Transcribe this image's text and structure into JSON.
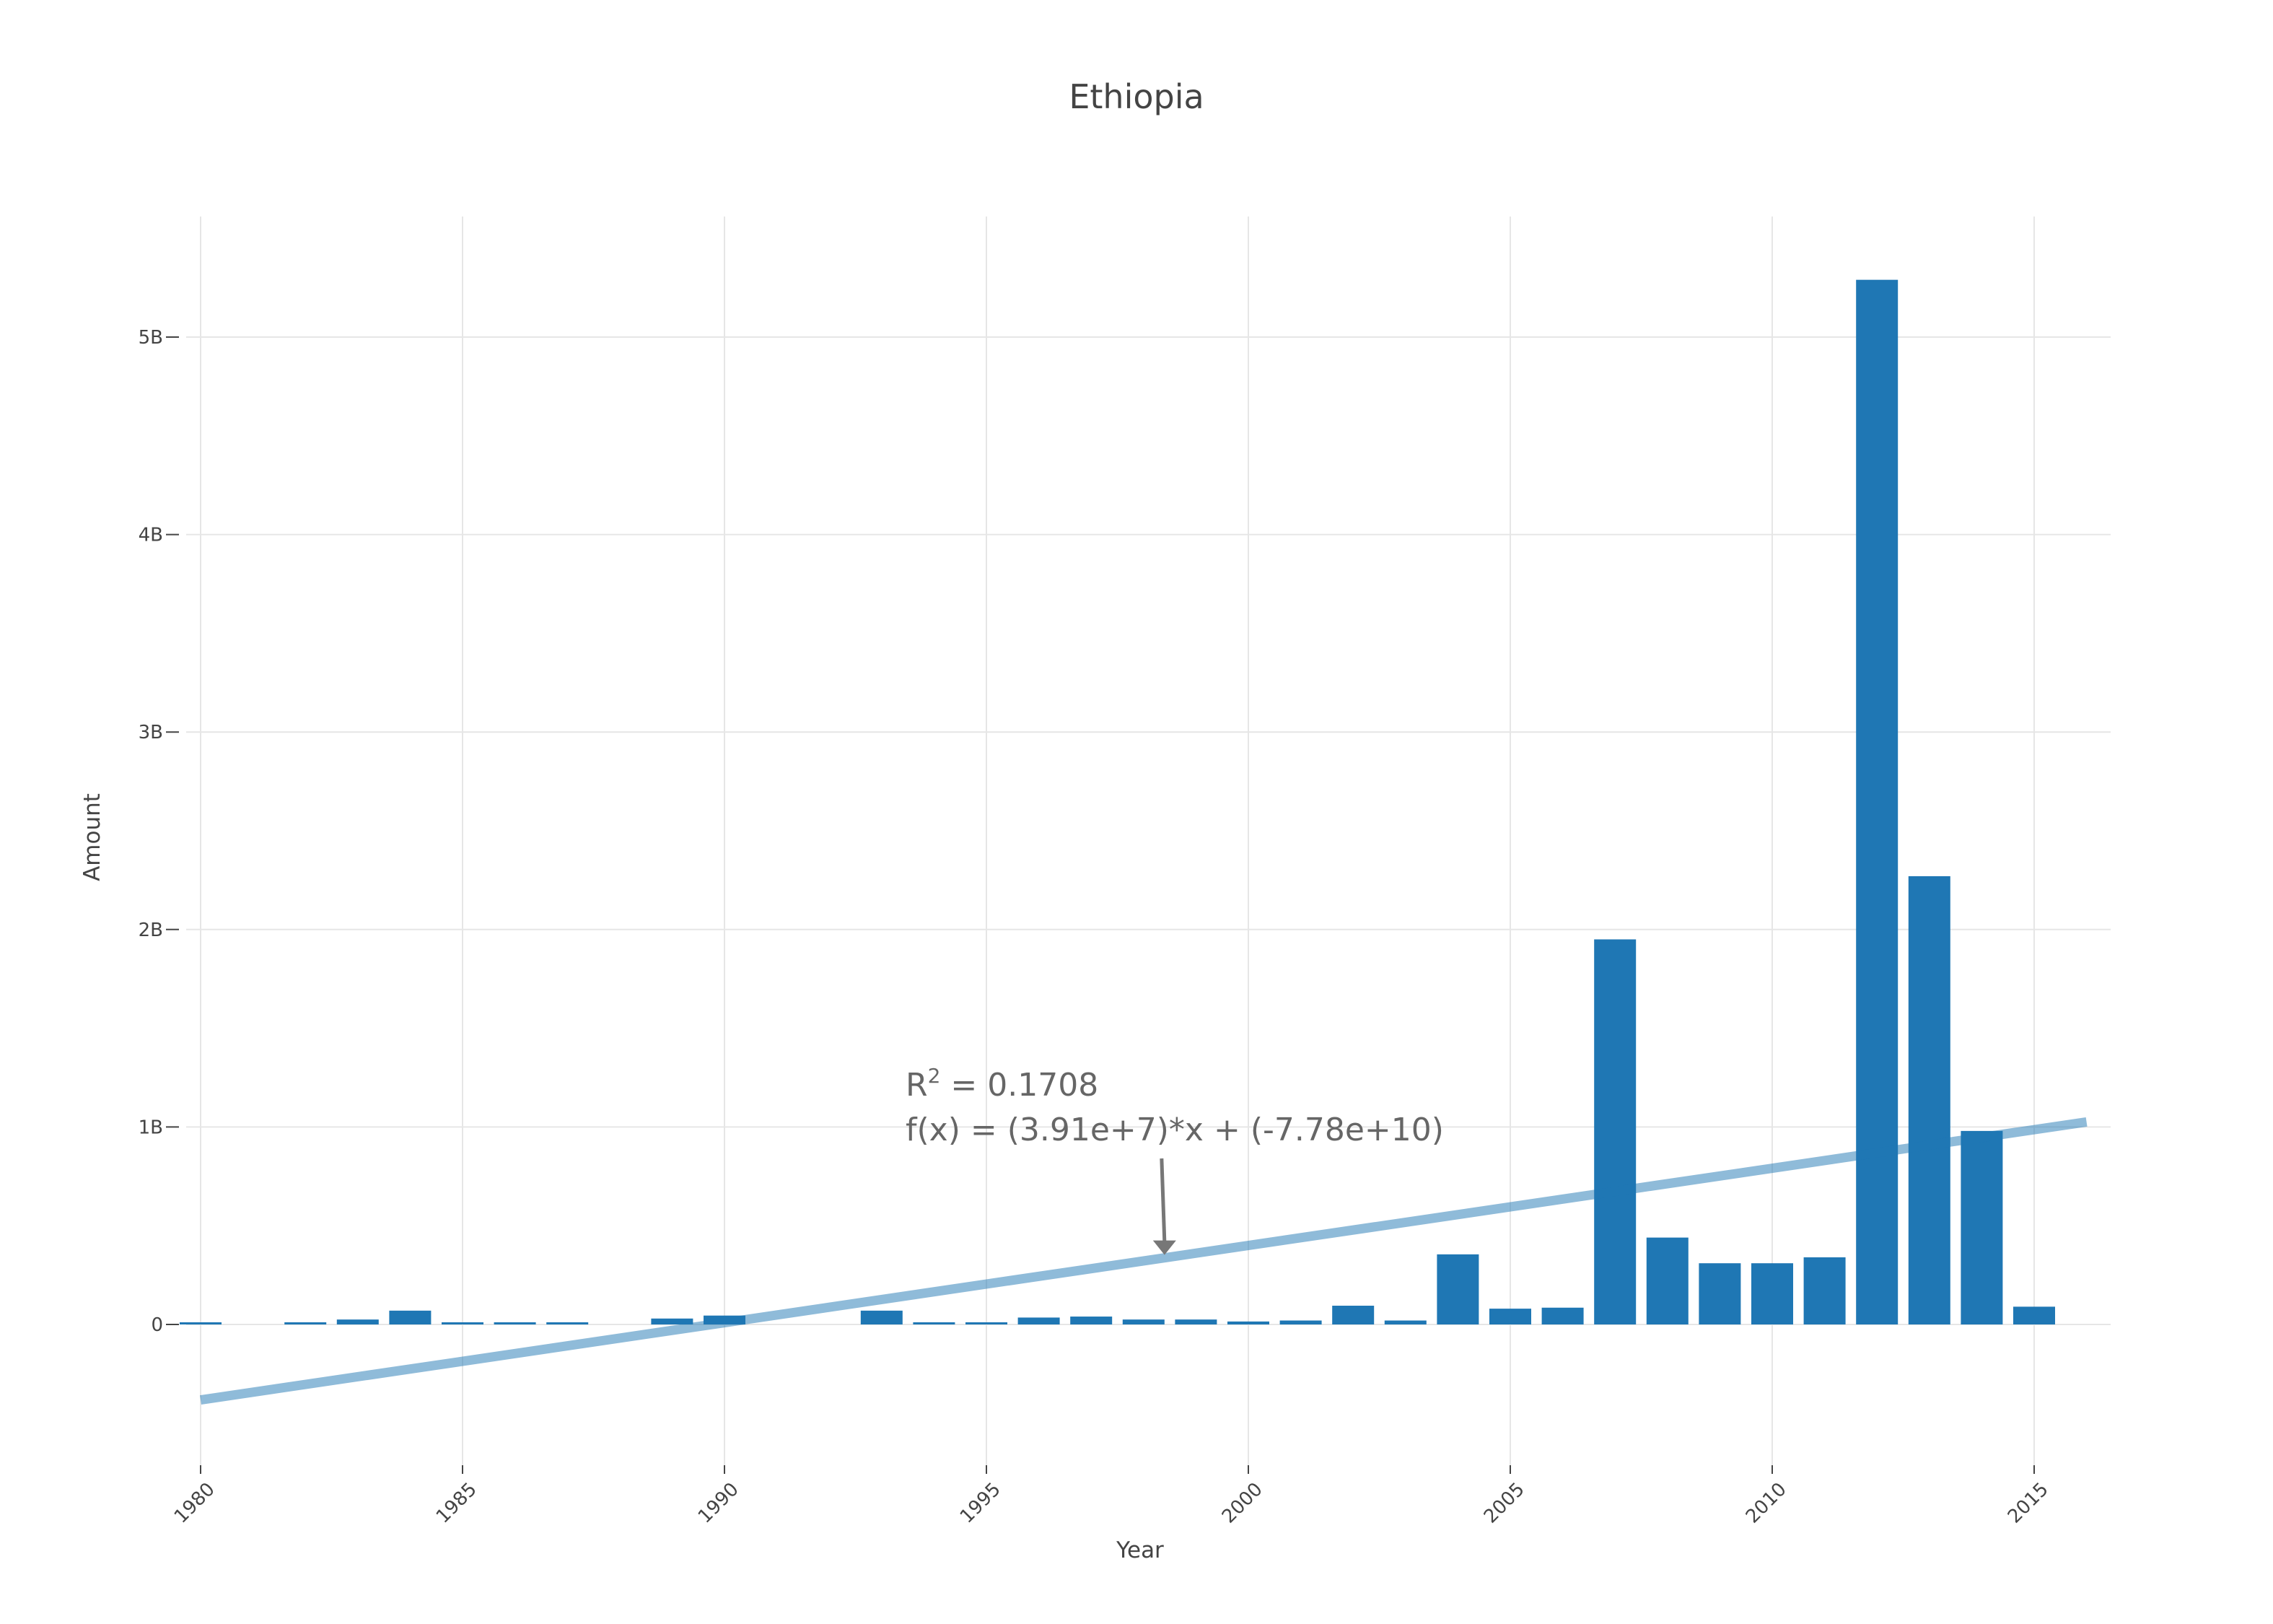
{
  "chart_data": {
    "type": "bar",
    "title": "Ethiopia",
    "xlabel": "Year",
    "ylabel": "Amount",
    "xlim": [
      1980,
      2016
    ],
    "ylim": [
      -0.7,
      5.6
    ],
    "ytick_unit": "B",
    "x_ticks": [
      1980,
      1985,
      1990,
      1995,
      2000,
      2005,
      2010,
      2015
    ],
    "y_ticks": [
      0,
      1,
      2,
      3,
      4,
      5
    ],
    "grid": true,
    "legend": "none",
    "colors": {
      "bar": "#1f77b4",
      "trend": "#1f77b4",
      "annotation": "#666666"
    },
    "series": [
      {
        "x": [
          1980,
          1982,
          1983,
          1984,
          1985,
          1986,
          1987,
          1989,
          1990,
          1993,
          1994,
          1995,
          1996,
          1997,
          1998,
          1999,
          2000,
          2001,
          2002,
          2003,
          2004,
          2005,
          2006,
          2007,
          2008,
          2009,
          2010,
          2011,
          2012,
          2013,
          2014,
          2015
        ],
        "values": [
          0.008,
          0.008,
          0.025,
          0.07,
          0.006,
          0.008,
          0.005,
          0.03,
          0.045,
          0.07,
          0.005,
          0.005,
          0.035,
          0.04,
          0.025,
          0.025,
          0.015,
          0.02,
          0.095,
          0.02,
          0.355,
          0.08,
          0.085,
          1.95,
          0.44,
          0.31,
          0.31,
          0.34,
          5.29,
          2.27,
          0.98,
          0.09
        ]
      }
    ],
    "trendline": {
      "slope": 0.0391,
      "intercept": -77.8,
      "x_range": [
        1980,
        2016
      ]
    },
    "annotation": {
      "r_label": "R",
      "r_sup": "2",
      "r_value": " = 0.1708",
      "formula": "f(x) = (3.91e+7)*x + (-7.78e+10)",
      "arrow_x": 1998.4
    }
  }
}
